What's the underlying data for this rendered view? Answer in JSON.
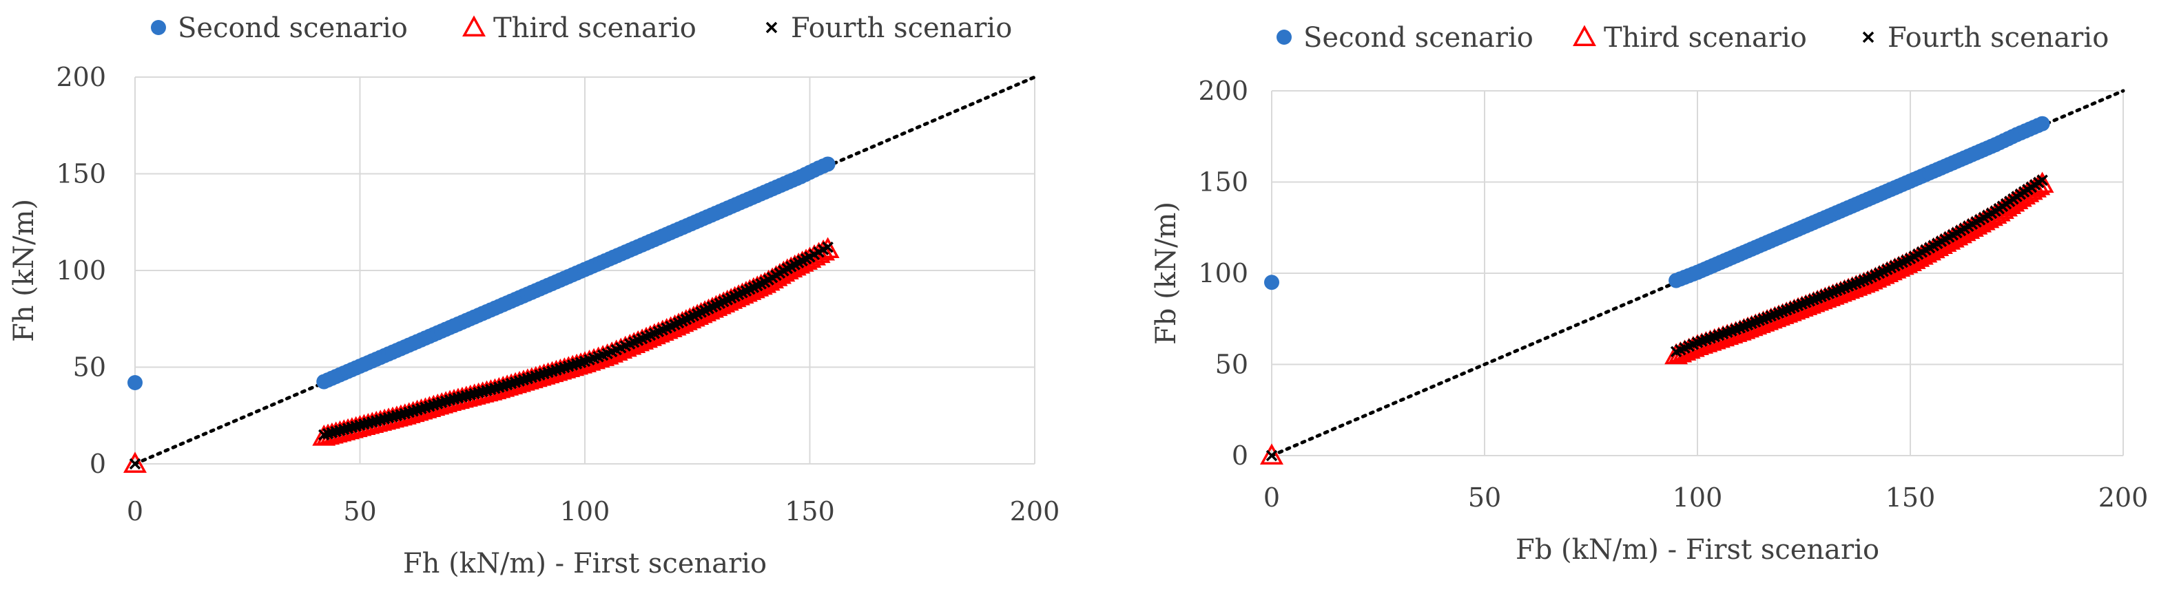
{
  "chart_data": [
    {
      "type": "scatter",
      "title": "",
      "xlabel": "Fh (kN/m) - First scenario",
      "ylabel": "Fh (kN/m)",
      "xlim": [
        0,
        200
      ],
      "ylim": [
        0,
        200
      ],
      "x_ticks": [
        "0",
        "50",
        "100",
        "150",
        "200"
      ],
      "y_ticks": [
        "0",
        "50",
        "100",
        "150",
        "200"
      ],
      "grid": true,
      "legend_position": "top",
      "reference_line": "y = x (dotted)",
      "series": [
        {
          "name": "Second scenario",
          "marker": "circle",
          "color": "#2E75C8",
          "x": [
            0,
            42,
            50,
            60,
            70,
            80,
            90,
            100,
            110,
            120,
            130,
            140,
            148,
            152,
            154
          ],
          "y": [
            42,
            42.5,
            50.5,
            60.5,
            70.5,
            80.5,
            90.5,
            100.5,
            110.5,
            120.5,
            130.5,
            140.5,
            148.5,
            153,
            155
          ]
        },
        {
          "name": "Third scenario",
          "marker": "triangle",
          "color": "#FF0000",
          "x": [
            0,
            42,
            50,
            60,
            70,
            80,
            90,
            100,
            105,
            110,
            120,
            130,
            140,
            145,
            150,
            154
          ],
          "y": [
            0,
            14,
            19,
            25,
            32,
            38,
            45,
            52,
            56,
            61,
            71,
            82,
            93,
            100,
            106,
            111
          ]
        },
        {
          "name": "Fourth scenario",
          "marker": "x",
          "color": "#000000",
          "x": [
            0,
            42,
            50,
            60,
            70,
            80,
            90,
            100,
            105,
            110,
            120,
            130,
            140,
            145,
            150,
            154
          ],
          "y": [
            0,
            15,
            20,
            26,
            33,
            39,
            46,
            53,
            57,
            62,
            72,
            83,
            94,
            101,
            107,
            112
          ]
        }
      ]
    },
    {
      "type": "scatter",
      "title": "",
      "xlabel": "Fb (kN/m) - First scenario",
      "ylabel": "Fb (kN/m)",
      "xlim": [
        0,
        200
      ],
      "ylim": [
        0,
        200
      ],
      "x_ticks": [
        "0",
        "50",
        "100",
        "150",
        "200"
      ],
      "y_ticks": [
        "0",
        "50",
        "100",
        "150",
        "200"
      ],
      "grid": true,
      "legend_position": "top",
      "reference_line": "y = x (dotted)",
      "series": [
        {
          "name": "Second scenario",
          "marker": "circle",
          "color": "#2E75C8",
          "x": [
            0,
            95,
            100,
            110,
            120,
            130,
            140,
            150,
            160,
            170,
            175,
            181
          ],
          "y": [
            95,
            96,
            100.5,
            110.5,
            120.5,
            130.5,
            140.5,
            150.5,
            160.5,
            170.5,
            176,
            182
          ]
        },
        {
          "name": "Third scenario",
          "marker": "triangle",
          "color": "#FF0000",
          "x": [
            0,
            95,
            100,
            110,
            120,
            130,
            140,
            150,
            160,
            170,
            175,
            181
          ],
          "y": [
            0,
            55,
            60,
            68,
            77,
            86,
            95,
            106,
            119,
            132,
            140,
            149
          ]
        },
        {
          "name": "Fourth scenario",
          "marker": "x",
          "color": "#000000",
          "x": [
            0,
            95,
            100,
            110,
            120,
            130,
            140,
            150,
            160,
            170,
            175,
            181
          ],
          "y": [
            0,
            57,
            62,
            70,
            79,
            88,
            97,
            108,
            121,
            134,
            142,
            151
          ]
        }
      ]
    }
  ]
}
